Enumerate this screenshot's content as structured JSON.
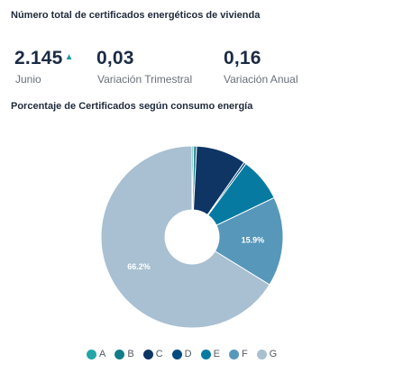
{
  "header": {
    "title": "Número total de certificados energéticos de vivienda"
  },
  "kpis": [
    {
      "value": "2.145",
      "trend": "▲",
      "label": "Junio"
    },
    {
      "value": "0,03",
      "label": "Variación Trimestral"
    },
    {
      "value": "0,16",
      "label": "Variación Anual"
    }
  ],
  "chart_title": "Porcentaje de Certificados según consumo energía",
  "chart_data": {
    "type": "pie",
    "donut": true,
    "title": "Porcentaje de Certificados según consumo energía",
    "categories": [
      "A",
      "B",
      "C",
      "D",
      "E",
      "F",
      "G"
    ],
    "values": [
      0.3,
      0.5,
      8.9,
      0.4,
      7.8,
      15.9,
      66.2
    ],
    "data_labels": {
      "F": "15.9%",
      "G": "66.2%"
    },
    "colors": [
      "#23a6a6",
      "#127b8a",
      "#0e3563",
      "#034a80",
      "#077aa1",
      "#5797ba",
      "#a8c0d1"
    ],
    "legend_position": "bottom"
  }
}
